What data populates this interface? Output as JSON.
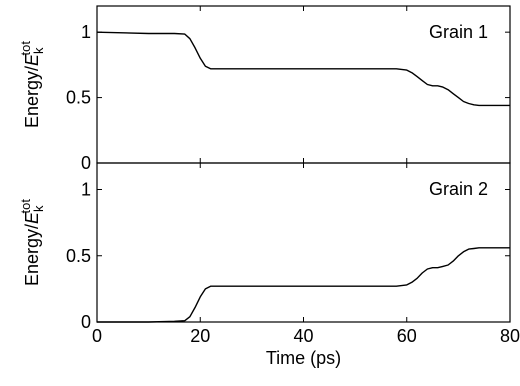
{
  "chart_data": [
    {
      "type": "line",
      "panel_label": "Grain 1",
      "ylabel_main": "Energy/",
      "ylabel_symbol": "E",
      "ylabel_sub": "k",
      "ylabel_sup": "tot",
      "xlim": [
        0,
        80
      ],
      "ylim": [
        0,
        1.2
      ],
      "yticks": [
        0,
        0.5,
        1
      ],
      "ytick_labels": [
        "0",
        "0.5",
        "1"
      ],
      "series": [
        {
          "x": [
            0,
            5,
            10,
            15,
            17,
            18,
            19,
            20,
            21,
            22,
            25,
            30,
            40,
            50,
            55,
            58,
            60,
            61,
            62,
            63,
            64,
            65,
            66,
            67,
            68,
            69,
            70,
            71,
            72,
            73,
            74,
            75,
            80
          ],
          "y": [
            1.0,
            0.995,
            0.99,
            0.99,
            0.985,
            0.95,
            0.88,
            0.8,
            0.74,
            0.72,
            0.72,
            0.72,
            0.72,
            0.72,
            0.72,
            0.72,
            0.71,
            0.69,
            0.66,
            0.63,
            0.6,
            0.59,
            0.59,
            0.58,
            0.56,
            0.53,
            0.5,
            0.47,
            0.455,
            0.445,
            0.44,
            0.44,
            0.44
          ]
        }
      ]
    },
    {
      "type": "line",
      "panel_label": "Grain 2",
      "ylabel_main": "Energy/",
      "ylabel_symbol": "E",
      "ylabel_sub": "k",
      "ylabel_sup": "tot",
      "xlabel": "Time (ps)",
      "xlim": [
        0,
        80
      ],
      "xticks": [
        0,
        20,
        40,
        60,
        80
      ],
      "xtick_labels": [
        "0",
        "20",
        "40",
        "60",
        "80"
      ],
      "ylim": [
        0,
        1.2
      ],
      "yticks": [
        0,
        0.5,
        1
      ],
      "ytick_labels": [
        "0",
        "0.5",
        "1"
      ],
      "series": [
        {
          "x": [
            0,
            5,
            10,
            15,
            17,
            18,
            19,
            20,
            21,
            22,
            25,
            30,
            40,
            50,
            55,
            58,
            60,
            61,
            62,
            63,
            64,
            65,
            66,
            67,
            68,
            69,
            70,
            71,
            72,
            73,
            74,
            75,
            80
          ],
          "y": [
            0.0,
            0.0,
            0.0,
            0.005,
            0.01,
            0.04,
            0.11,
            0.19,
            0.25,
            0.27,
            0.27,
            0.27,
            0.27,
            0.27,
            0.27,
            0.27,
            0.28,
            0.3,
            0.33,
            0.37,
            0.4,
            0.41,
            0.41,
            0.42,
            0.43,
            0.46,
            0.5,
            0.53,
            0.55,
            0.555,
            0.56,
            0.56,
            0.56
          ]
        }
      ]
    }
  ]
}
